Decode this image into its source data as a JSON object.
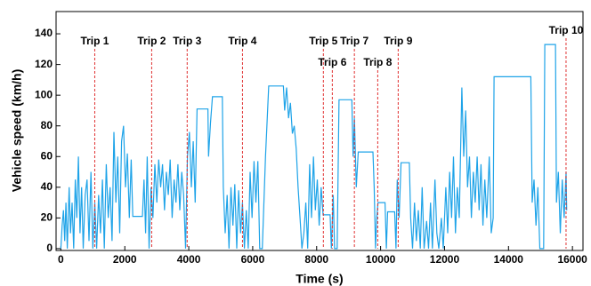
{
  "chart_data": {
    "type": "line",
    "xlabel": "Time (s)",
    "ylabel": "Vehicle speed (km/h)",
    "color": "#1ea3e8",
    "x": [
      0,
      40,
      80,
      120,
      160,
      200,
      260,
      300,
      350,
      400,
      450,
      500,
      550,
      600,
      650,
      700,
      760,
      820,
      880,
      940,
      1000,
      1060,
      1120,
      1180,
      1240,
      1300,
      1360,
      1420,
      1480,
      1540,
      1600,
      1660,
      1720,
      1780,
      1840,
      1900,
      1960,
      2020,
      2080,
      2140,
      2200,
      2250,
      2550,
      2600,
      2650,
      2700,
      2760,
      2820,
      2880,
      2940,
      3000,
      3060,
      3120,
      3180,
      3240,
      3300,
      3360,
      3420,
      3480,
      3540,
      3600,
      3660,
      3720,
      3780,
      3840,
      3900,
      3960,
      4020,
      4080,
      4140,
      4200,
      4260,
      4600,
      4620,
      4680,
      4740,
      5050,
      5080,
      5140,
      5200,
      5260,
      5320,
      5380,
      5440,
      5500,
      5560,
      5620,
      5680,
      5740,
      5800,
      5860,
      5920,
      5980,
      6040,
      6100,
      6160,
      6220,
      6300,
      6400,
      6500,
      6960,
      7000,
      7060,
      7120,
      7180,
      7240,
      7300,
      7360,
      7420,
      7480,
      7540,
      7600,
      7660,
      7720,
      7780,
      7840,
      7900,
      7960,
      8020,
      8080,
      8140,
      8200,
      8420,
      8460,
      8520,
      8560,
      8640,
      8700,
      9100,
      9140,
      9180,
      9240,
      9300,
      9760,
      9800,
      9840,
      9880,
      9920,
      10140,
      10180,
      10220,
      10440,
      10480,
      10520,
      10580,
      10640,
      10900,
      10940,
      11000,
      11060,
      11120,
      11180,
      11240,
      11300,
      11360,
      11440,
      11500,
      11560,
      11620,
      11700,
      11760,
      11820,
      11900,
      11960,
      12040,
      12100,
      12160,
      12220,
      12280,
      12340,
      12400,
      12460,
      12540,
      12600,
      12660,
      12720,
      12780,
      12840,
      12900,
      12960,
      13020,
      13080,
      13140,
      13200,
      13260,
      13320,
      13400,
      13460,
      13520,
      13550,
      14700,
      14740,
      14800,
      14860,
      14920,
      14980,
      15100,
      15137,
      15471,
      15500,
      15560,
      15620,
      15680,
      15740,
      15800,
      15820
    ],
    "values": [
      0,
      15,
      25,
      5,
      30,
      0,
      40,
      10,
      30,
      0,
      45,
      20,
      60,
      10,
      40,
      0,
      35,
      45,
      5,
      50,
      0,
      30,
      0,
      35,
      10,
      45,
      0,
      55,
      20,
      40,
      5,
      76,
      30,
      60,
      10,
      70,
      80,
      40,
      62,
      20,
      58,
      21,
      21,
      45,
      10,
      60,
      0,
      40,
      20,
      55,
      30,
      58,
      40,
      55,
      25,
      50,
      35,
      58,
      20,
      45,
      30,
      55,
      25,
      50,
      35,
      0,
      60,
      76,
      40,
      70,
      30,
      91,
      91,
      60,
      82,
      99,
      99,
      40,
      10,
      35,
      0,
      40,
      15,
      42,
      0,
      38,
      10,
      30,
      0,
      25,
      0,
      50,
      20,
      57,
      30,
      57,
      0,
      0,
      60,
      106,
      106,
      90,
      105,
      85,
      95,
      75,
      80,
      65,
      40,
      20,
      0,
      10,
      30,
      0,
      55,
      20,
      60,
      25,
      45,
      15,
      40,
      22,
      22,
      0,
      35,
      0,
      0,
      97,
      97,
      60,
      85,
      40,
      63,
      63,
      40,
      0,
      20,
      30,
      30,
      0,
      24,
      24,
      0,
      45,
      20,
      56,
      56,
      20,
      0,
      30,
      5,
      25,
      0,
      40,
      0,
      18,
      0,
      30,
      0,
      45,
      10,
      0,
      20,
      0,
      40,
      10,
      50,
      20,
      60,
      10,
      40,
      20,
      105,
      60,
      90,
      40,
      60,
      20,
      50,
      30,
      60,
      25,
      55,
      15,
      45,
      20,
      60,
      10,
      20,
      112,
      112,
      30,
      45,
      15,
      40,
      0,
      0,
      133,
      133,
      30,
      50,
      10,
      45,
      20,
      50,
      25
    ],
    "annotations": [
      {
        "x": 1060,
        "text": "Trip 1"
      },
      {
        "x": 2840,
        "text": "Trip 2"
      },
      {
        "x": 3950,
        "text": "Trip 3"
      },
      {
        "x": 5680,
        "text": "Trip 4"
      },
      {
        "x": 8210,
        "text": "Trip 5"
      },
      {
        "x": 8490,
        "text": "Trip 6"
      },
      {
        "x": 9180,
        "text": "Trip 7"
      },
      {
        "x": 9910,
        "text": "Trip 8"
      },
      {
        "x": 10550,
        "text": "Trip 9"
      },
      {
        "x": 15800,
        "text": "Trip 10"
      }
    ],
    "annotation_color": "#e03030",
    "xlim": [
      -150,
      16330
    ],
    "ylim": [
      -1.2,
      154.5
    ],
    "xticks": [
      0,
      2000,
      4000,
      6000,
      8000,
      10000,
      12000,
      14000,
      16000
    ],
    "yticks": [
      0,
      20,
      40,
      60,
      80,
      100,
      120,
      140
    ]
  }
}
